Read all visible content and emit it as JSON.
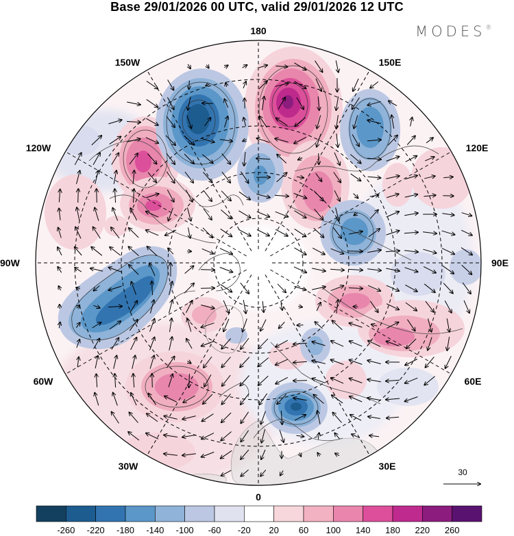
{
  "header": {
    "title": "Base 29/01/2026 00 UTC, valid 29/01/2026 12 UTC",
    "brand": "MODES",
    "brand_mark": "®"
  },
  "map": {
    "projection": "north-polar-stereographic",
    "longitude_labels": {
      "top": "180",
      "bottom": "0",
      "left": "90W",
      "right": "90E",
      "upper_left_1": "150W",
      "upper_left_2": "120W",
      "lower_left_1": "60W",
      "lower_left_2": "30W",
      "upper_right_1": "150E",
      "upper_right_2": "120E",
      "lower_right_1": "60E",
      "lower_right_2": "30E"
    },
    "wind_reference": {
      "value": "30"
    }
  },
  "colorbar": {
    "labels": [
      "-260",
      "-220",
      "-180",
      "-140",
      "-100",
      "-60",
      "-20",
      "20",
      "60",
      "100",
      "140",
      "180",
      "220",
      "260"
    ],
    "colors": [
      "#14405f",
      "#1d5c8f",
      "#3274b0",
      "#5b97c8",
      "#8fb3d9",
      "#bcc8e3",
      "#e0e2f0",
      "#ffffff",
      "#f7d7dc",
      "#f2b2c2",
      "#ea86ad",
      "#dd4f9b",
      "#bf2a8e",
      "#8c1c7e",
      "#5a1270"
    ]
  },
  "anomalies": [
    {
      "name": "pos-bering",
      "value": 240
    },
    {
      "name": "pos-alaska-upper",
      "value": 180
    },
    {
      "name": "pos-alaska-lower",
      "value": 190
    },
    {
      "name": "pos-laptev",
      "value": 150
    },
    {
      "name": "pos-west-siberia",
      "value": 130
    },
    {
      "name": "pos-central-siberia",
      "value": 170
    },
    {
      "name": "pos-north-atlantic",
      "value": 150
    },
    {
      "name": "pos-greenland",
      "value": 90
    },
    {
      "name": "neg-gulf-alaska",
      "value": -230
    },
    {
      "name": "neg-east-siberia",
      "value": -150
    },
    {
      "name": "neg-chukchi",
      "value": -120
    },
    {
      "name": "neg-kara",
      "value": -150
    },
    {
      "name": "neg-hudson",
      "value": -200
    },
    {
      "name": "neg-scandinavia",
      "value": -220
    }
  ]
}
